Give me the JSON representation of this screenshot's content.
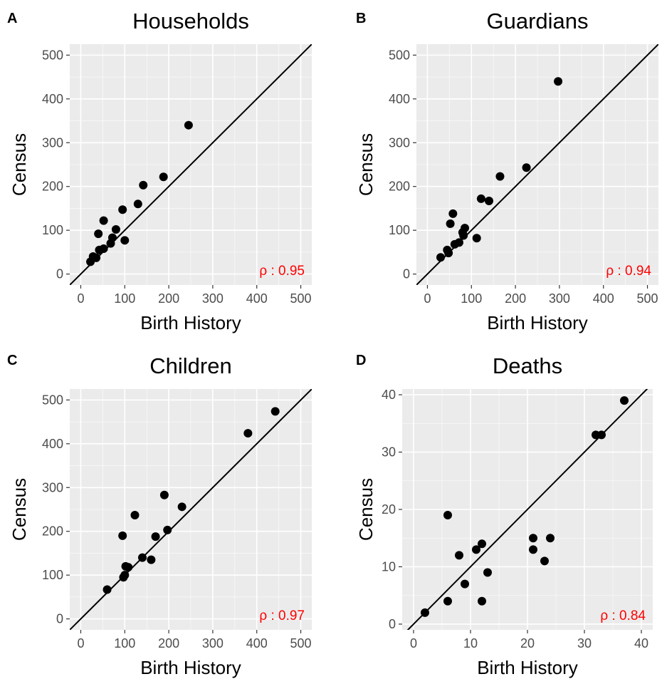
{
  "colors": {
    "panel_background": "#ebebeb",
    "grid_major": "#ffffff",
    "point": "#000000",
    "identity_line": "#000000",
    "annotation": "#ff0000",
    "tick_text": "#4d4d4d"
  },
  "chart_data": [
    {
      "type": "scatter",
      "panel_label": "A",
      "title": "Households",
      "xlabel": "Birth History",
      "ylabel": "Census",
      "xlim": [
        -25,
        525
      ],
      "ylim": [
        -25,
        525
      ],
      "xticks": [
        0,
        100,
        200,
        300,
        400,
        500
      ],
      "yticks": [
        0,
        100,
        200,
        300,
        400,
        500
      ],
      "xtick_labels": [
        "0",
        "100",
        "200",
        "300",
        "400",
        "500"
      ],
      "ytick_labels": [
        "0",
        "100",
        "200",
        "300",
        "400",
        "500"
      ],
      "identity_line": true,
      "grid": true,
      "annotation": "ρ : 0.95",
      "points": [
        {
          "x": 22,
          "y": 28
        },
        {
          "x": 28,
          "y": 40
        },
        {
          "x": 35,
          "y": 37
        },
        {
          "x": 40,
          "y": 92
        },
        {
          "x": 42,
          "y": 55
        },
        {
          "x": 52,
          "y": 58
        },
        {
          "x": 52,
          "y": 122
        },
        {
          "x": 68,
          "y": 70
        },
        {
          "x": 72,
          "y": 83
        },
        {
          "x": 80,
          "y": 102
        },
        {
          "x": 95,
          "y": 147
        },
        {
          "x": 100,
          "y": 77
        },
        {
          "x": 130,
          "y": 160
        },
        {
          "x": 142,
          "y": 203
        },
        {
          "x": 188,
          "y": 222
        },
        {
          "x": 245,
          "y": 340
        }
      ]
    },
    {
      "type": "scatter",
      "panel_label": "B",
      "title": "Guardians",
      "xlabel": "Birth History",
      "ylabel": "Census",
      "xlim": [
        -25,
        525
      ],
      "ylim": [
        -25,
        525
      ],
      "xticks": [
        0,
        100,
        200,
        300,
        400,
        500
      ],
      "yticks": [
        0,
        100,
        200,
        300,
        400,
        500
      ],
      "xtick_labels": [
        "0",
        "100",
        "200",
        "300",
        "400",
        "500"
      ],
      "ytick_labels": [
        "0",
        "100",
        "200",
        "300",
        "400",
        "500"
      ],
      "identity_line": true,
      "grid": true,
      "annotation": "ρ : 0.94",
      "points": [
        {
          "x": 30,
          "y": 38
        },
        {
          "x": 45,
          "y": 55
        },
        {
          "x": 48,
          "y": 48
        },
        {
          "x": 52,
          "y": 115
        },
        {
          "x": 58,
          "y": 138
        },
        {
          "x": 62,
          "y": 68
        },
        {
          "x": 72,
          "y": 72
        },
        {
          "x": 80,
          "y": 95
        },
        {
          "x": 82,
          "y": 88
        },
        {
          "x": 85,
          "y": 105
        },
        {
          "x": 112,
          "y": 82
        },
        {
          "x": 122,
          "y": 172
        },
        {
          "x": 140,
          "y": 167
        },
        {
          "x": 165,
          "y": 223
        },
        {
          "x": 225,
          "y": 243
        },
        {
          "x": 297,
          "y": 440
        }
      ]
    },
    {
      "type": "scatter",
      "panel_label": "C",
      "title": "Children",
      "xlabel": "Birth History",
      "ylabel": "Census",
      "xlim": [
        -25,
        525
      ],
      "ylim": [
        -25,
        525
      ],
      "xticks": [
        0,
        100,
        200,
        300,
        400,
        500
      ],
      "yticks": [
        0,
        100,
        200,
        300,
        400,
        500
      ],
      "xtick_labels": [
        "0",
        "100",
        "200",
        "300",
        "400",
        "500"
      ],
      "ytick_labels": [
        "0",
        "100",
        "200",
        "300",
        "400",
        "500"
      ],
      "identity_line": true,
      "grid": true,
      "annotation": "ρ : 0.97",
      "points": [
        {
          "x": 60,
          "y": 67
        },
        {
          "x": 95,
          "y": 190
        },
        {
          "x": 97,
          "y": 95
        },
        {
          "x": 100,
          "y": 100
        },
        {
          "x": 102,
          "y": 120
        },
        {
          "x": 108,
          "y": 118
        },
        {
          "x": 123,
          "y": 237
        },
        {
          "x": 140,
          "y": 140
        },
        {
          "x": 160,
          "y": 135
        },
        {
          "x": 170,
          "y": 188
        },
        {
          "x": 190,
          "y": 283
        },
        {
          "x": 197,
          "y": 203
        },
        {
          "x": 230,
          "y": 256
        },
        {
          "x": 380,
          "y": 424
        },
        {
          "x": 442,
          "y": 474
        }
      ]
    },
    {
      "type": "scatter",
      "panel_label": "D",
      "title": "Deaths",
      "xlabel": "Birth History",
      "ylabel": "Census",
      "xlim": [
        -2,
        42
      ],
      "ylim": [
        -1,
        41
      ],
      "xticks": [
        0,
        10,
        20,
        30,
        40
      ],
      "yticks": [
        0,
        10,
        20,
        30,
        40
      ],
      "xtick_labels": [
        "0",
        "10",
        "20",
        "30",
        "40"
      ],
      "ytick_labels": [
        "0",
        "10",
        "20",
        "30",
        "40"
      ],
      "identity_line": true,
      "grid": true,
      "annotation": "ρ : 0.84",
      "points": [
        {
          "x": 2,
          "y": 2
        },
        {
          "x": 6,
          "y": 4
        },
        {
          "x": 6,
          "y": 19
        },
        {
          "x": 8,
          "y": 12
        },
        {
          "x": 9,
          "y": 7
        },
        {
          "x": 11,
          "y": 13
        },
        {
          "x": 12,
          "y": 14
        },
        {
          "x": 12,
          "y": 4
        },
        {
          "x": 13,
          "y": 9
        },
        {
          "x": 21,
          "y": 15
        },
        {
          "x": 21,
          "y": 13
        },
        {
          "x": 23,
          "y": 11
        },
        {
          "x": 24,
          "y": 15
        },
        {
          "x": 32,
          "y": 33
        },
        {
          "x": 33,
          "y": 33
        },
        {
          "x": 37,
          "y": 39
        }
      ]
    }
  ]
}
